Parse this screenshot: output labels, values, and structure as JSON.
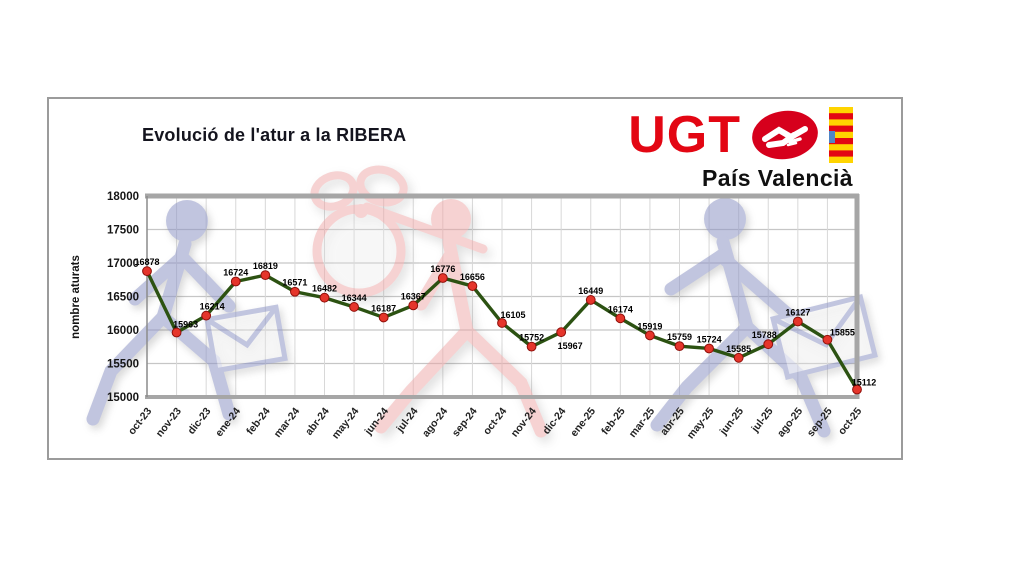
{
  "logo": {
    "acronym": "UGT",
    "region": "País Valencià"
  },
  "icons": {
    "handshake": "handshake-icon",
    "flag": "senyera-flag-icon"
  },
  "colors": {
    "brand_red": "#e30613",
    "logo_oval_red": "#d6001c",
    "line_green": "#2c5212",
    "marker_red": "#e5352b",
    "watermark_blue": "#8f96c6",
    "watermark_pink": "#efa6a6",
    "grid_gray": "#c6c6c6"
  },
  "chart_data": {
    "type": "line",
    "title": "Evolució de l'atur a la RIBERA",
    "xlabel": "",
    "ylabel": "nombre aturats",
    "ylim": [
      15000,
      18000
    ],
    "ytick_step": 500,
    "grid": true,
    "legend_position": "none",
    "categories": [
      "oct-23",
      "nov-23",
      "dic-23",
      "ene-24",
      "feb-24",
      "mar-24",
      "abr-24",
      "may-24",
      "jun-24",
      "jul-24",
      "ago-24",
      "sep-24",
      "oct-24",
      "nov-24",
      "dic-24",
      "ene-25",
      "feb-25",
      "mar-25",
      "abr-25",
      "may-25",
      "jun-25",
      "jul-25",
      "ago-25",
      "sep-25",
      "oct-25"
    ],
    "values": [
      16878,
      15963,
      16214,
      16724,
      16819,
      16571,
      16482,
      16344,
      16187,
      16367,
      16776,
      16656,
      16105,
      15752,
      15967,
      16449,
      16174,
      15919,
      15759,
      15724,
      15585,
      15788,
      16127,
      15855,
      15112
    ],
    "line_color": "#2c5212",
    "marker_color": "#e5352b"
  }
}
